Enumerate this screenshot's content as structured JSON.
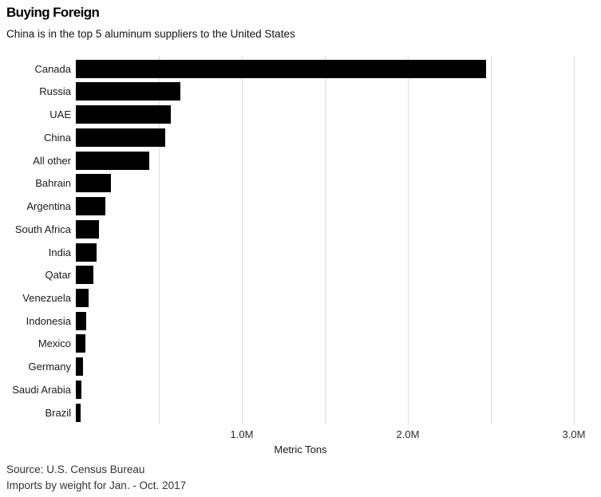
{
  "header": {
    "title": "Buying Foreign",
    "subtitle": "China is in the top 5 aluminum suppliers to the United States"
  },
  "chart_data": {
    "type": "bar",
    "orientation": "horizontal",
    "title": "Buying Foreign",
    "subtitle": "China is in the top 5 aluminum suppliers to the United States",
    "categories": [
      "Canada",
      "Russia",
      "UAE",
      "China",
      "All other",
      "Bahrain",
      "Argentina",
      "South Africa",
      "India",
      "Qatar",
      "Venezuela",
      "Indonesia",
      "Mexico",
      "Germany",
      "Saudi Arabia",
      "Brazil"
    ],
    "values": [
      2.47,
      0.63,
      0.57,
      0.54,
      0.44,
      0.21,
      0.18,
      0.14,
      0.125,
      0.105,
      0.077,
      0.062,
      0.058,
      0.043,
      0.034,
      0.029
    ],
    "unit": "million metric tons",
    "xlabel": "Metric Tons",
    "xlim": [
      0,
      3.0
    ],
    "x_gridline_step": 0.5,
    "x_ticks": [
      {
        "value": 1.0,
        "label": "1.0M"
      },
      {
        "value": 2.0,
        "label": "2.0M"
      },
      {
        "value": 3.0,
        "label": "3.0M"
      }
    ],
    "grid": "vertical-only",
    "legend": "none",
    "bar_color": "#000000",
    "gridline_color": "#dcdcdc"
  },
  "footer": {
    "source": "Source: U.S. Census Bureau",
    "note": "Imports by weight for Jan. - Oct. 2017"
  }
}
